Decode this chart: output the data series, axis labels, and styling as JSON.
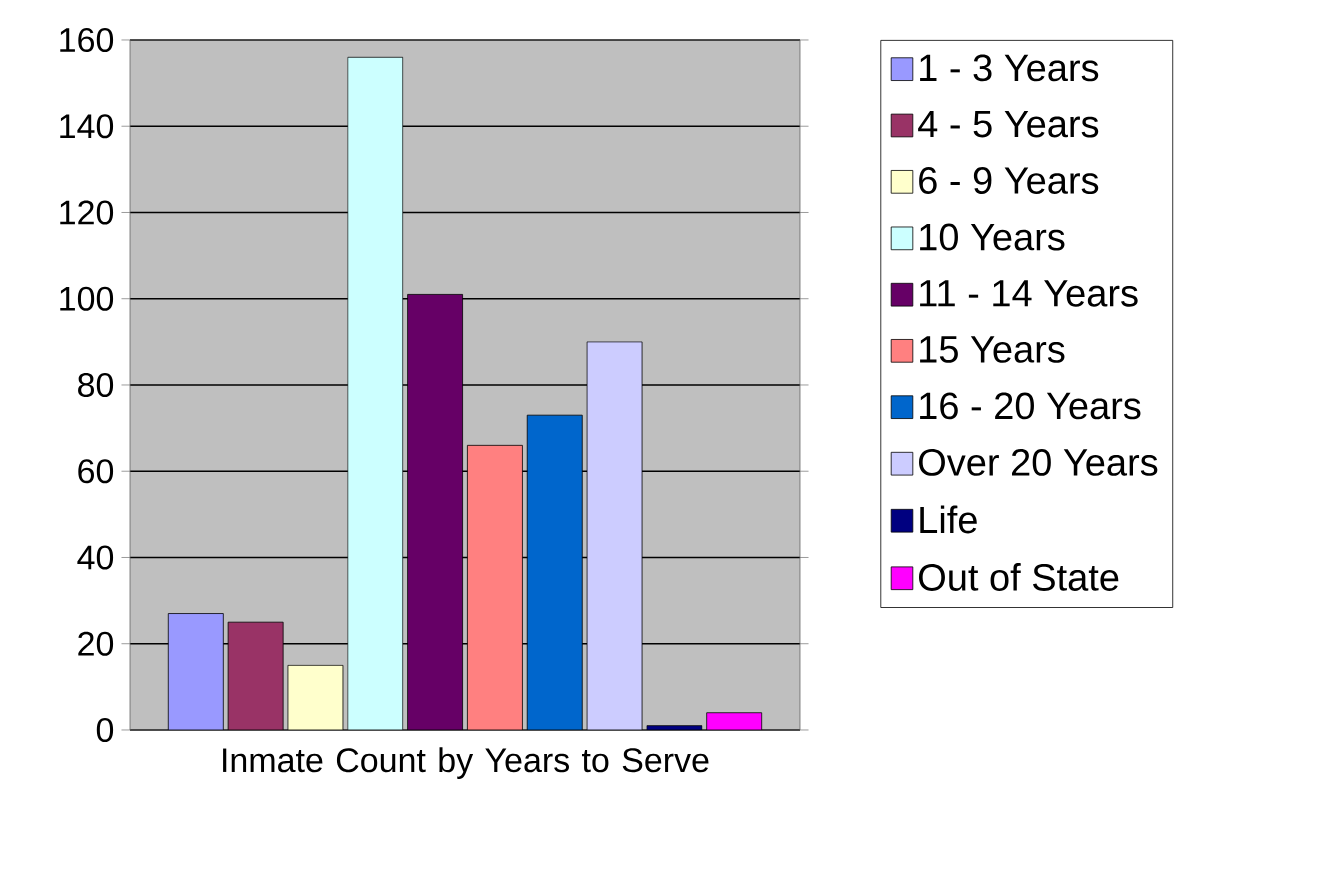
{
  "chart_data": {
    "type": "bar",
    "xlabel": "Inmate Count by Years to Serve",
    "categories": [
      null,
      null,
      null,
      null,
      null,
      null,
      null,
      null,
      null,
      null
    ],
    "series": [
      {
        "name": "1 - 3 Years",
        "color": "#9999ff",
        "values": [
          27,
          null,
          null,
          null,
          null,
          null,
          null,
          null,
          null,
          null
        ]
      },
      {
        "name": "4 - 5 Years",
        "color": "#993366",
        "values": [
          null,
          25,
          null,
          null,
          null,
          null,
          null,
          null,
          null,
          null
        ]
      },
      {
        "name": "6 - 9 Years",
        "color": "#ffffcc",
        "values": [
          null,
          null,
          15,
          null,
          null,
          null,
          null,
          null,
          null,
          null
        ]
      },
      {
        "name": "10 Years",
        "color": "#ccffff",
        "values": [
          null,
          null,
          null,
          156,
          null,
          null,
          null,
          null,
          null,
          null
        ]
      },
      {
        "name": "11 - 14 Years",
        "color": "#660066",
        "values": [
          null,
          null,
          null,
          null,
          101,
          null,
          null,
          null,
          null,
          null
        ]
      },
      {
        "name": "15 Years",
        "color": "#ff8080",
        "values": [
          null,
          null,
          null,
          null,
          null,
          66,
          null,
          null,
          null,
          null
        ]
      },
      {
        "name": "16 - 20 Years",
        "color": "#0066cc",
        "values": [
          null,
          null,
          null,
          null,
          null,
          null,
          73,
          null,
          null,
          null
        ]
      },
      {
        "name": "Over 20 Years",
        "color": "#ccccff",
        "values": [
          null,
          null,
          null,
          null,
          null,
          null,
          null,
          90,
          null,
          null
        ]
      },
      {
        "name": "Life",
        "color": "#000080",
        "values": [
          null,
          null,
          null,
          null,
          null,
          null,
          null,
          null,
          1,
          null
        ]
      },
      {
        "name": "Out of State",
        "color": "#ff00ff",
        "values": [
          null,
          null,
          null,
          null,
          null,
          null,
          null,
          null,
          null,
          4
        ]
      }
    ],
    "ylim": [
      0,
      160
    ],
    "yticks": [
      0,
      20,
      40,
      60,
      80,
      100,
      120,
      140,
      160
    ],
    "grid": "y",
    "legend": "right"
  }
}
